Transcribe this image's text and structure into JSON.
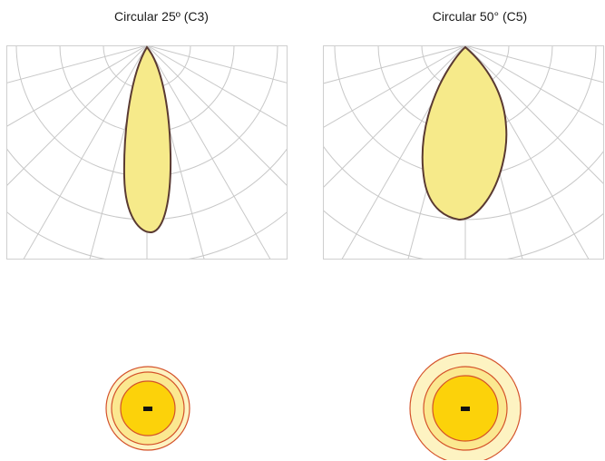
{
  "diagrams": [
    {
      "title": "Circular 25º (C3)",
      "beam_angle_deg": 25,
      "footprint_rings": 3
    },
    {
      "title": "Circular 50° (C5)",
      "beam_angle_deg": 50,
      "footprint_rings": 3
    }
  ],
  "colors": {
    "grid": "#c8c8c8",
    "frame": "#cfcfcf",
    "beam_fill": "#f6ea8a",
    "beam_stroke": "#5a3a32",
    "ring_outer_fill": "#fdf3c2",
    "ring_middle_fill": "#fbe890",
    "ring_inner_fill": "#fcd20a",
    "ring_stroke": "#d4522a",
    "center_mark": "#111111"
  }
}
